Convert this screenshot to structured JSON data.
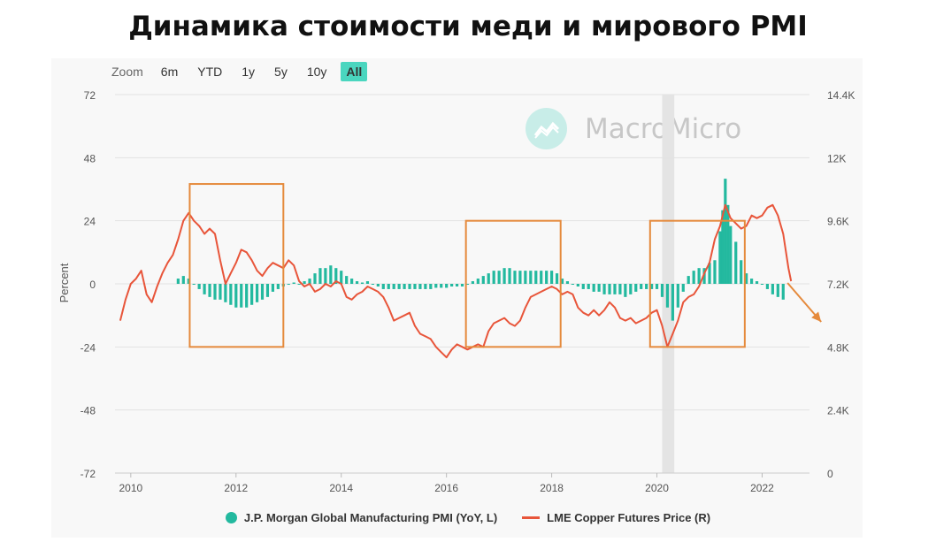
{
  "title": "Динамика стоимости меди и мирового PMI",
  "zoom": {
    "label": "Zoom",
    "buttons": [
      "6m",
      "YTD",
      "1y",
      "5y",
      "10y",
      "All"
    ],
    "active": "All"
  },
  "watermark": "MacroMicro",
  "colors": {
    "pmi": "#23b99f",
    "copper": "#e8553a",
    "box": "#e58a3c",
    "arrow": "#e58a3c",
    "recession_band": "#e4e4e4",
    "active_zoom": "#4ad6bf"
  },
  "chart_data": {
    "type": "bar+line",
    "ylabel_left": "Percent",
    "left_axis": {
      "ticks": [
        72,
        48,
        24,
        0,
        -24,
        -48,
        -72
      ],
      "range": [
        -72,
        72
      ]
    },
    "right_axis": {
      "ticks": [
        "14.4K",
        "12K",
        "9.6K",
        "7.2K",
        "4.8K",
        "2.4K",
        "0"
      ],
      "range": [
        0,
        14400
      ]
    },
    "x_axis": {
      "ticks": [
        "2010",
        "2012",
        "2014",
        "2016",
        "2018",
        "2020",
        "2022"
      ],
      "range": [
        2009.7,
        2022.9
      ]
    },
    "grid": "horizontal",
    "legend_position": "bottom-center",
    "shaded_periods": [
      [
        2020.1,
        2020.33
      ]
    ],
    "highlight_boxes": [
      {
        "x": [
          2011.12,
          2012.9
        ],
        "y_right": [
          4800,
          11000
        ]
      },
      {
        "x": [
          2016.37,
          2018.17
        ],
        "y_right": [
          4800,
          9600
        ]
      },
      {
        "x": [
          2019.87,
          2021.67
        ],
        "y_right": [
          4800,
          9600
        ]
      }
    ],
    "series": [
      {
        "name": "J.P. Morgan Global Manufacturing PMI (YoY, L)",
        "type": "bar",
        "axis": "left",
        "points": [
          [
            2010.9,
            2
          ],
          [
            2011.0,
            3
          ],
          [
            2011.1,
            2
          ],
          [
            2011.2,
            0
          ],
          [
            2011.3,
            -2
          ],
          [
            2011.4,
            -4
          ],
          [
            2011.5,
            -5
          ],
          [
            2011.6,
            -6
          ],
          [
            2011.7,
            -6
          ],
          [
            2011.8,
            -7
          ],
          [
            2011.9,
            -8
          ],
          [
            2012.0,
            -9
          ],
          [
            2012.1,
            -9
          ],
          [
            2012.2,
            -9
          ],
          [
            2012.3,
            -8
          ],
          [
            2012.4,
            -7
          ],
          [
            2012.5,
            -6
          ],
          [
            2012.6,
            -5
          ],
          [
            2012.7,
            -3
          ],
          [
            2012.8,
            -2
          ],
          [
            2012.9,
            -1
          ],
          [
            2013.0,
            0
          ],
          [
            2013.1,
            0.5
          ],
          [
            2013.2,
            0
          ],
          [
            2013.3,
            1
          ],
          [
            2013.4,
            2
          ],
          [
            2013.5,
            4
          ],
          [
            2013.6,
            6
          ],
          [
            2013.7,
            6
          ],
          [
            2013.8,
            7
          ],
          [
            2013.9,
            6
          ],
          [
            2014.0,
            5
          ],
          [
            2014.1,
            3
          ],
          [
            2014.2,
            2
          ],
          [
            2014.3,
            1
          ],
          [
            2014.4,
            0.5
          ],
          [
            2014.5,
            1
          ],
          [
            2014.6,
            0
          ],
          [
            2014.7,
            -1
          ],
          [
            2014.8,
            -2
          ],
          [
            2014.9,
            -2
          ],
          [
            2015.0,
            -2
          ],
          [
            2015.1,
            -2
          ],
          [
            2015.2,
            -2
          ],
          [
            2015.3,
            -2
          ],
          [
            2015.4,
            -2
          ],
          [
            2015.5,
            -2
          ],
          [
            2015.6,
            -2
          ],
          [
            2015.7,
            -2
          ],
          [
            2015.8,
            -1.5
          ],
          [
            2015.9,
            -1.5
          ],
          [
            2016.0,
            -1.5
          ],
          [
            2016.1,
            -1
          ],
          [
            2016.2,
            -1
          ],
          [
            2016.3,
            -1
          ],
          [
            2016.4,
            0
          ],
          [
            2016.5,
            1
          ],
          [
            2016.6,
            2
          ],
          [
            2016.7,
            3
          ],
          [
            2016.8,
            4
          ],
          [
            2016.9,
            5
          ],
          [
            2017.0,
            5
          ],
          [
            2017.1,
            6
          ],
          [
            2017.2,
            6
          ],
          [
            2017.3,
            5
          ],
          [
            2017.4,
            5
          ],
          [
            2017.5,
            5
          ],
          [
            2017.6,
            5
          ],
          [
            2017.7,
            5
          ],
          [
            2017.8,
            5
          ],
          [
            2017.9,
            5
          ],
          [
            2018.0,
            5
          ],
          [
            2018.1,
            4
          ],
          [
            2018.2,
            2
          ],
          [
            2018.3,
            1
          ],
          [
            2018.4,
            0
          ],
          [
            2018.5,
            -1
          ],
          [
            2018.6,
            -2
          ],
          [
            2018.7,
            -2
          ],
          [
            2018.8,
            -3
          ],
          [
            2018.9,
            -3
          ],
          [
            2019.0,
            -4
          ],
          [
            2019.1,
            -4
          ],
          [
            2019.2,
            -4
          ],
          [
            2019.3,
            -4
          ],
          [
            2019.4,
            -5
          ],
          [
            2019.5,
            -4
          ],
          [
            2019.6,
            -3
          ],
          [
            2019.7,
            -2
          ],
          [
            2019.8,
            -2
          ],
          [
            2019.9,
            -2
          ],
          [
            2020.0,
            -2
          ],
          [
            2020.1,
            -5
          ],
          [
            2020.2,
            -9
          ],
          [
            2020.3,
            -14
          ],
          [
            2020.4,
            -9
          ],
          [
            2020.5,
            -3
          ],
          [
            2020.6,
            3
          ],
          [
            2020.7,
            5
          ],
          [
            2020.8,
            6
          ],
          [
            2020.9,
            6
          ],
          [
            2021.0,
            8
          ],
          [
            2021.1,
            9
          ],
          [
            2021.2,
            20
          ],
          [
            2021.25,
            28
          ],
          [
            2021.3,
            40
          ],
          [
            2021.35,
            30
          ],
          [
            2021.4,
            22
          ],
          [
            2021.5,
            16
          ],
          [
            2021.6,
            9
          ],
          [
            2021.7,
            4
          ],
          [
            2021.8,
            2
          ],
          [
            2021.9,
            1
          ],
          [
            2022.0,
            0
          ],
          [
            2022.1,
            -2
          ],
          [
            2022.2,
            -4
          ],
          [
            2022.3,
            -5
          ],
          [
            2022.4,
            -6
          ]
        ]
      },
      {
        "name": "LME Copper Futures Price (R)",
        "type": "line",
        "axis": "right",
        "points": [
          [
            2009.8,
            5800
          ],
          [
            2009.9,
            6600
          ],
          [
            2010.0,
            7200
          ],
          [
            2010.1,
            7400
          ],
          [
            2010.2,
            7700
          ],
          [
            2010.3,
            6800
          ],
          [
            2010.4,
            6500
          ],
          [
            2010.5,
            7100
          ],
          [
            2010.6,
            7600
          ],
          [
            2010.7,
            8000
          ],
          [
            2010.8,
            8300
          ],
          [
            2010.9,
            8900
          ],
          [
            2011.0,
            9600
          ],
          [
            2011.1,
            9900
          ],
          [
            2011.2,
            9600
          ],
          [
            2011.3,
            9400
          ],
          [
            2011.4,
            9100
          ],
          [
            2011.5,
            9300
          ],
          [
            2011.6,
            9100
          ],
          [
            2011.7,
            8100
          ],
          [
            2011.8,
            7200
          ],
          [
            2011.9,
            7600
          ],
          [
            2012.0,
            8000
          ],
          [
            2012.1,
            8500
          ],
          [
            2012.2,
            8400
          ],
          [
            2012.3,
            8100
          ],
          [
            2012.4,
            7700
          ],
          [
            2012.5,
            7500
          ],
          [
            2012.6,
            7800
          ],
          [
            2012.7,
            8000
          ],
          [
            2012.8,
            7900
          ],
          [
            2012.9,
            7800
          ],
          [
            2013.0,
            8100
          ],
          [
            2013.1,
            7900
          ],
          [
            2013.2,
            7300
          ],
          [
            2013.3,
            7100
          ],
          [
            2013.4,
            7200
          ],
          [
            2013.5,
            6900
          ],
          [
            2013.6,
            7000
          ],
          [
            2013.7,
            7200
          ],
          [
            2013.8,
            7100
          ],
          [
            2013.9,
            7300
          ],
          [
            2014.0,
            7200
          ],
          [
            2014.1,
            6700
          ],
          [
            2014.2,
            6600
          ],
          [
            2014.3,
            6800
          ],
          [
            2014.4,
            6900
          ],
          [
            2014.5,
            7100
          ],
          [
            2014.6,
            7000
          ],
          [
            2014.7,
            6900
          ],
          [
            2014.8,
            6700
          ],
          [
            2014.9,
            6300
          ],
          [
            2015.0,
            5800
          ],
          [
            2015.1,
            5900
          ],
          [
            2015.2,
            6000
          ],
          [
            2015.3,
            6100
          ],
          [
            2015.4,
            5600
          ],
          [
            2015.5,
            5300
          ],
          [
            2015.6,
            5200
          ],
          [
            2015.7,
            5100
          ],
          [
            2015.8,
            4800
          ],
          [
            2015.9,
            4600
          ],
          [
            2016.0,
            4400
          ],
          [
            2016.1,
            4700
          ],
          [
            2016.2,
            4900
          ],
          [
            2016.3,
            4800
          ],
          [
            2016.4,
            4700
          ],
          [
            2016.5,
            4800
          ],
          [
            2016.6,
            4900
          ],
          [
            2016.7,
            4800
          ],
          [
            2016.8,
            5400
          ],
          [
            2016.9,
            5700
          ],
          [
            2017.0,
            5800
          ],
          [
            2017.1,
            5900
          ],
          [
            2017.2,
            5700
          ],
          [
            2017.3,
            5600
          ],
          [
            2017.4,
            5800
          ],
          [
            2017.5,
            6300
          ],
          [
            2017.6,
            6700
          ],
          [
            2017.7,
            6800
          ],
          [
            2017.8,
            6900
          ],
          [
            2017.9,
            7000
          ],
          [
            2018.0,
            7100
          ],
          [
            2018.1,
            7000
          ],
          [
            2018.2,
            6800
          ],
          [
            2018.3,
            6900
          ],
          [
            2018.4,
            6800
          ],
          [
            2018.5,
            6300
          ],
          [
            2018.6,
            6100
          ],
          [
            2018.7,
            6000
          ],
          [
            2018.8,
            6200
          ],
          [
            2018.9,
            6000
          ],
          [
            2019.0,
            6200
          ],
          [
            2019.1,
            6500
          ],
          [
            2019.2,
            6300
          ],
          [
            2019.3,
            5900
          ],
          [
            2019.4,
            5800
          ],
          [
            2019.5,
            5900
          ],
          [
            2019.6,
            5700
          ],
          [
            2019.7,
            5800
          ],
          [
            2019.8,
            5900
          ],
          [
            2019.9,
            6100
          ],
          [
            2020.0,
            6200
          ],
          [
            2020.1,
            5600
          ],
          [
            2020.2,
            4800
          ],
          [
            2020.3,
            5300
          ],
          [
            2020.4,
            5800
          ],
          [
            2020.5,
            6500
          ],
          [
            2020.6,
            6700
          ],
          [
            2020.7,
            6800
          ],
          [
            2020.8,
            7100
          ],
          [
            2020.9,
            7600
          ],
          [
            2021.0,
            8000
          ],
          [
            2021.1,
            8900
          ],
          [
            2021.2,
            9400
          ],
          [
            2021.3,
            10200
          ],
          [
            2021.4,
            9700
          ],
          [
            2021.5,
            9500
          ],
          [
            2021.6,
            9300
          ],
          [
            2021.7,
            9400
          ],
          [
            2021.8,
            9800
          ],
          [
            2021.9,
            9700
          ],
          [
            2022.0,
            9800
          ],
          [
            2022.1,
            10100
          ],
          [
            2022.2,
            10200
          ],
          [
            2022.3,
            9800
          ],
          [
            2022.4,
            9100
          ],
          [
            2022.5,
            7800
          ],
          [
            2022.55,
            7300
          ]
        ]
      }
    ]
  }
}
